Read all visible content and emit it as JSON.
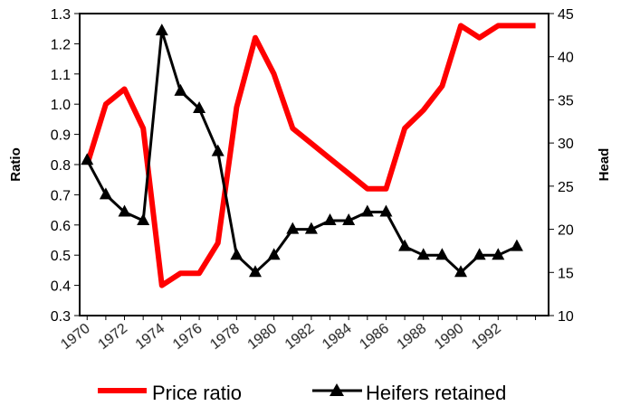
{
  "chart_data": {
    "type": "line",
    "title": "",
    "x": [
      1970,
      1971,
      1972,
      1973,
      1974,
      1975,
      1976,
      1977,
      1978,
      1979,
      1980,
      1981,
      1982,
      1983,
      1984,
      1985,
      1986,
      1987,
      1988,
      1989,
      1990,
      1991,
      1992,
      1993,
      1994
    ],
    "x_tick_labels": [
      "1970",
      "1972",
      "1974",
      "1976",
      "1978",
      "1980",
      "1982",
      "1984",
      "1986",
      "1988",
      "1990",
      "1992"
    ],
    "left_axis": {
      "label": "Ratio",
      "ylim": [
        0.3,
        1.3
      ],
      "ticks": [
        "0.3",
        "0.4",
        "0.5",
        "0.6",
        "0.7",
        "0.8",
        "0.9",
        "1.0",
        "1.1",
        "1.2",
        "1.3"
      ]
    },
    "right_axis": {
      "label": "Head",
      "ylim": [
        10,
        45
      ],
      "ticks": [
        "10",
        "15",
        "20",
        "25",
        "30",
        "35",
        "40",
        "45"
      ]
    },
    "series": [
      {
        "name": "Price ratio",
        "axis": "left",
        "color": "#ff0000",
        "values": [
          0.8,
          1.0,
          1.05,
          0.92,
          0.4,
          0.44,
          0.44,
          0.54,
          0.99,
          1.22,
          1.1,
          0.92,
          0.87,
          0.82,
          0.77,
          0.72,
          0.72,
          0.92,
          0.98,
          1.06,
          1.26,
          1.22,
          1.26,
          1.26,
          1.26
        ]
      },
      {
        "name": "Heifers retained",
        "axis": "right",
        "color": "#000000",
        "marker": "triangle",
        "values": [
          28,
          24,
          22,
          21,
          43,
          36,
          34,
          29,
          17,
          15,
          17,
          20,
          20,
          21,
          21,
          22,
          22,
          18,
          17,
          17,
          15,
          17,
          17,
          18,
          null
        ]
      }
    ],
    "legend_position": "bottom",
    "grid": false
  }
}
